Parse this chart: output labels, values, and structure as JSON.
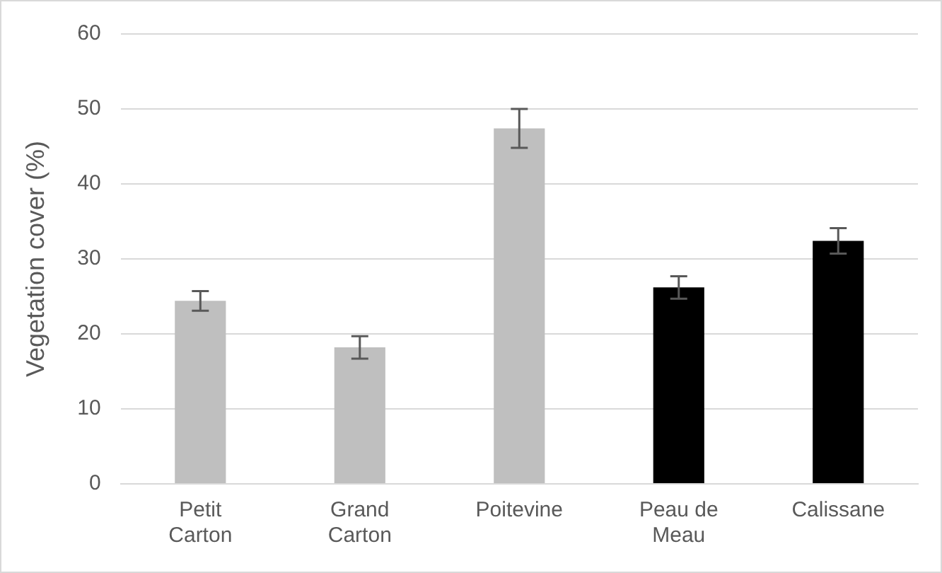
{
  "chart_data": {
    "type": "bar",
    "ylabel": "Vegetation cover (%)",
    "categories": [
      "Petit Carton",
      "Grand Carton",
      "Poitevine",
      "Peau de Meau",
      "Calissane"
    ],
    "values": [
      24.4,
      18.2,
      47.4,
      26.2,
      32.4
    ],
    "colors": [
      "#bfbfbf",
      "#bfbfbf",
      "#bfbfbf",
      "#000000",
      "#000000"
    ],
    "errors": [
      1.3,
      1.5,
      2.6,
      1.5,
      1.7
    ],
    "ylim": [
      0,
      60
    ],
    "yticks": [
      0,
      10,
      20,
      30,
      40,
      50,
      60
    ],
    "grid": "y"
  }
}
